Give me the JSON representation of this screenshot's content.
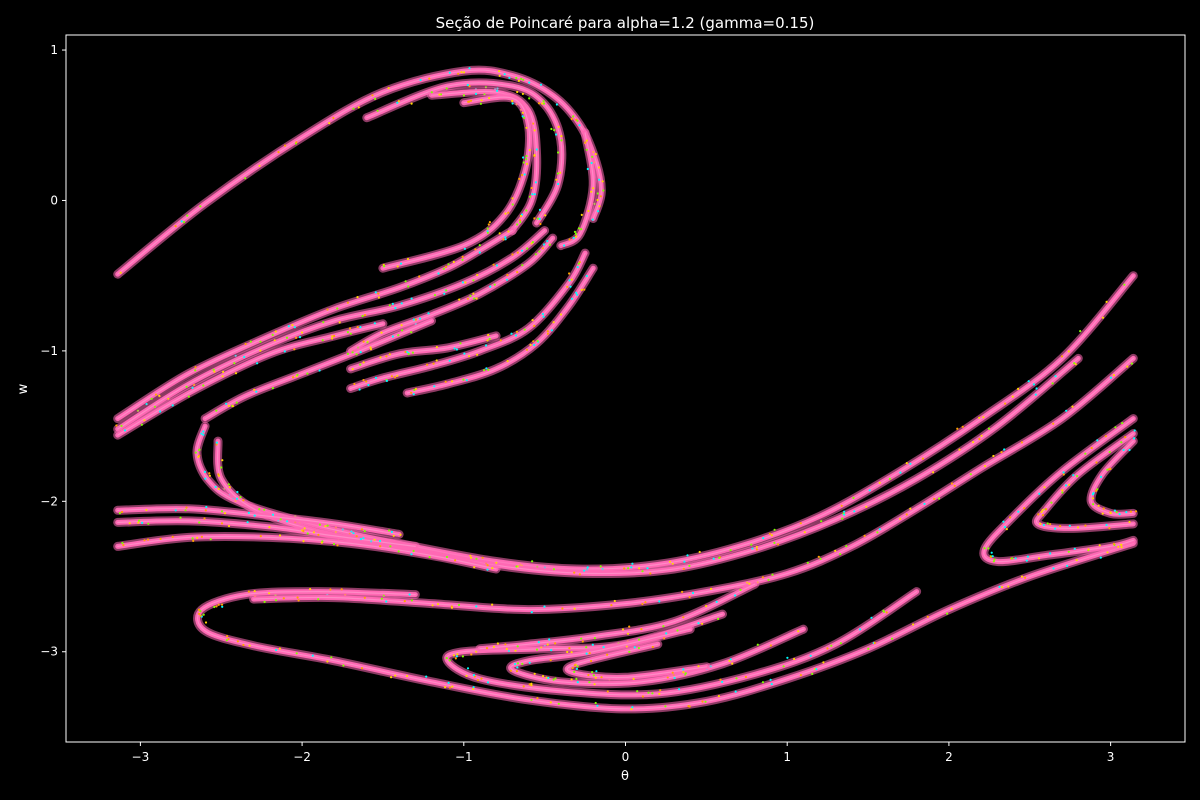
{
  "chart_data": {
    "type": "scatter",
    "title": "Seção de Poincaré para alpha=1.2 (gamma=0.15)",
    "xlabel": "θ",
    "ylabel": "w",
    "xlim": [
      -3.46,
      3.46
    ],
    "ylim": [
      -3.6,
      1.1
    ],
    "xticks": [
      -3,
      -2,
      -1,
      0,
      1,
      2,
      3
    ],
    "yticks": [
      -3,
      -2,
      -1,
      0,
      1
    ],
    "xtick_labels": [
      "−3",
      "−2",
      "−1",
      "0",
      "1",
      "2",
      "3"
    ],
    "ytick_labels": [
      "−3",
      "−2",
      "−1",
      "0",
      "1"
    ],
    "grid": false,
    "background": "#000000",
    "foreground": "#ffffff",
    "marker_colors": [
      "#ff69b4",
      "#ffd700",
      "#ffa500",
      "#7fff00",
      "#00ffff"
    ],
    "primary_color": "#ff69b4",
    "bands": [
      {
        "name": "upper-hook-outer",
        "points": [
          [
            -3.14,
            -0.49
          ],
          [
            -2.6,
            -0.02
          ],
          [
            -2.0,
            0.42
          ],
          [
            -1.5,
            0.72
          ],
          [
            -1.0,
            0.86
          ],
          [
            -0.7,
            0.83
          ],
          [
            -0.45,
            0.7
          ],
          [
            -0.28,
            0.5
          ],
          [
            -0.18,
            0.25
          ],
          [
            -0.15,
            0.05
          ],
          [
            -0.2,
            -0.12
          ]
        ]
      },
      {
        "name": "upper-hook-inner-a",
        "points": [
          [
            -1.6,
            0.55
          ],
          [
            -1.1,
            0.76
          ],
          [
            -0.7,
            0.76
          ],
          [
            -0.5,
            0.64
          ],
          [
            -0.4,
            0.4
          ],
          [
            -0.42,
            0.1
          ],
          [
            -0.55,
            -0.15
          ]
        ]
      },
      {
        "name": "upper-hook-inner-b",
        "points": [
          [
            -1.2,
            0.7
          ],
          [
            -0.8,
            0.72
          ],
          [
            -0.6,
            0.6
          ],
          [
            -0.55,
            0.3
          ],
          [
            -0.58,
            0.0
          ],
          [
            -0.7,
            -0.2
          ]
        ]
      },
      {
        "name": "upper-hook-inner-c",
        "points": [
          [
            -1.0,
            0.65
          ],
          [
            -0.7,
            0.68
          ],
          [
            -0.6,
            0.5
          ],
          [
            -0.62,
            0.2
          ],
          [
            -0.75,
            -0.1
          ],
          [
            -1.0,
            -0.3
          ],
          [
            -1.5,
            -0.45
          ]
        ]
      },
      {
        "name": "upper-hook-tip",
        "points": [
          [
            -0.25,
            0.45
          ],
          [
            -0.2,
            0.1
          ],
          [
            -0.28,
            -0.22
          ],
          [
            -0.4,
            -0.3
          ]
        ]
      },
      {
        "name": "mid-arm-a",
        "points": [
          [
            -3.14,
            -1.45
          ],
          [
            -2.7,
            -1.15
          ],
          [
            -2.2,
            -0.9
          ],
          [
            -1.8,
            -0.72
          ],
          [
            -1.4,
            -0.58
          ],
          [
            -1.1,
            -0.45
          ],
          [
            -0.9,
            -0.33
          ],
          [
            -0.7,
            -0.2
          ]
        ]
      },
      {
        "name": "mid-arm-b",
        "points": [
          [
            -3.14,
            -1.52
          ],
          [
            -2.7,
            -1.22
          ],
          [
            -2.2,
            -0.96
          ],
          [
            -1.8,
            -0.8
          ],
          [
            -1.4,
            -0.7
          ],
          [
            -1.0,
            -0.55
          ],
          [
            -0.7,
            -0.38
          ],
          [
            -0.5,
            -0.2
          ]
        ]
      },
      {
        "name": "mid-arm-c",
        "points": [
          [
            -3.14,
            -1.56
          ],
          [
            -2.7,
            -1.28
          ],
          [
            -2.2,
            -1.02
          ],
          [
            -1.8,
            -0.9
          ],
          [
            -1.5,
            -0.82
          ]
        ]
      },
      {
        "name": "mid-fold-small",
        "points": [
          [
            -1.7,
            -1.0
          ],
          [
            -1.5,
            -0.88
          ],
          [
            -1.2,
            -0.76
          ],
          [
            -0.9,
            -0.62
          ],
          [
            -0.6,
            -0.42
          ],
          [
            -0.45,
            -0.25
          ]
        ]
      },
      {
        "name": "mid-fold-lower",
        "points": [
          [
            -1.7,
            -1.25
          ],
          [
            -1.5,
            -1.18
          ],
          [
            -1.2,
            -1.1
          ],
          [
            -0.9,
            -1.0
          ],
          [
            -0.6,
            -0.85
          ],
          [
            -0.35,
            -0.55
          ],
          [
            -0.25,
            -0.35
          ]
        ]
      },
      {
        "name": "mid-tongue",
        "points": [
          [
            -1.7,
            -1.12
          ],
          [
            -1.4,
            -1.02
          ],
          [
            -1.1,
            -0.98
          ],
          [
            -0.8,
            -0.9
          ]
        ]
      },
      {
        "name": "mid-tongue-2",
        "points": [
          [
            -1.35,
            -1.28
          ],
          [
            -1.1,
            -1.22
          ],
          [
            -0.8,
            -1.12
          ],
          [
            -0.55,
            -0.95
          ],
          [
            -0.35,
            -0.7
          ],
          [
            -0.2,
            -0.45
          ]
        ]
      },
      {
        "name": "swirl-left",
        "points": [
          [
            -2.6,
            -1.45
          ],
          [
            -2.35,
            -1.3
          ],
          [
            -2.0,
            -1.15
          ],
          [
            -1.6,
            -0.98
          ],
          [
            -1.2,
            -0.8
          ]
        ]
      },
      {
        "name": "big-s-band",
        "points": [
          [
            -2.6,
            -1.5
          ],
          [
            -2.65,
            -1.68
          ],
          [
            -2.58,
            -1.86
          ],
          [
            -2.4,
            -2.0
          ],
          [
            -1.95,
            -2.15
          ],
          [
            -1.4,
            -2.28
          ],
          [
            -0.8,
            -2.4
          ],
          [
            -0.3,
            -2.45
          ],
          [
            0.2,
            -2.42
          ],
          [
            0.7,
            -2.3
          ],
          [
            1.2,
            -2.1
          ],
          [
            1.7,
            -1.8
          ],
          [
            2.2,
            -1.45
          ],
          [
            2.7,
            -1.05
          ],
          [
            3.14,
            -0.5
          ]
        ]
      },
      {
        "name": "big-s-band-b",
        "points": [
          [
            -2.52,
            -1.6
          ],
          [
            -2.5,
            -1.85
          ],
          [
            -2.3,
            -2.05
          ],
          [
            -1.9,
            -2.2
          ],
          [
            -1.3,
            -2.33
          ],
          [
            -0.7,
            -2.44
          ],
          [
            -0.2,
            -2.48
          ],
          [
            0.3,
            -2.45
          ],
          [
            0.8,
            -2.32
          ],
          [
            1.3,
            -2.12
          ],
          [
            1.8,
            -1.85
          ],
          [
            2.3,
            -1.5
          ],
          [
            2.8,
            -1.05
          ]
        ]
      },
      {
        "name": "left-strands-a",
        "points": [
          [
            -3.14,
            -2.06
          ],
          [
            -2.7,
            -2.05
          ],
          [
            -2.2,
            -2.1
          ],
          [
            -1.8,
            -2.15
          ],
          [
            -1.4,
            -2.22
          ]
        ]
      },
      {
        "name": "left-strands-b",
        "points": [
          [
            -3.14,
            -2.14
          ],
          [
            -2.7,
            -2.13
          ],
          [
            -2.2,
            -2.17
          ],
          [
            -1.8,
            -2.23
          ],
          [
            -1.3,
            -2.3
          ]
        ]
      },
      {
        "name": "left-strands-c",
        "points": [
          [
            -3.14,
            -2.3
          ],
          [
            -2.7,
            -2.24
          ],
          [
            -2.2,
            -2.24
          ],
          [
            -1.7,
            -2.28
          ],
          [
            -1.2,
            -2.36
          ],
          [
            -0.8,
            -2.45
          ]
        ]
      },
      {
        "name": "lower-hook-outer",
        "points": [
          [
            -1.3,
            -2.62
          ],
          [
            -1.9,
            -2.6
          ],
          [
            -2.35,
            -2.62
          ],
          [
            -2.62,
            -2.72
          ],
          [
            -2.6,
            -2.86
          ],
          [
            -2.3,
            -2.96
          ],
          [
            -1.8,
            -3.06
          ],
          [
            -1.2,
            -3.2
          ],
          [
            -0.6,
            -3.32
          ],
          [
            0.0,
            -3.38
          ],
          [
            0.5,
            -3.33
          ],
          [
            1.0,
            -3.18
          ],
          [
            1.5,
            -2.98
          ],
          [
            2.0,
            -2.72
          ],
          [
            2.5,
            -2.5
          ],
          [
            3.14,
            -2.28
          ]
        ]
      },
      {
        "name": "lower-hook-top",
        "points": [
          [
            -2.3,
            -2.65
          ],
          [
            -1.8,
            -2.64
          ],
          [
            -1.2,
            -2.68
          ],
          [
            -0.6,
            -2.72
          ],
          [
            0.0,
            -2.68
          ],
          [
            0.5,
            -2.6
          ],
          [
            1.0,
            -2.48
          ],
          [
            1.4,
            -2.3
          ],
          [
            1.8,
            -2.05
          ],
          [
            2.2,
            -1.78
          ],
          [
            2.7,
            -1.45
          ],
          [
            3.14,
            -1.05
          ]
        ]
      },
      {
        "name": "lower-inner-a",
        "points": [
          [
            0.6,
            -2.75
          ],
          [
            0.0,
            -2.95
          ],
          [
            -0.5,
            -2.98
          ],
          [
            -1.0,
            -3.0
          ],
          [
            -1.1,
            -3.06
          ],
          [
            -0.9,
            -3.18
          ],
          [
            -0.4,
            -3.26
          ],
          [
            0.2,
            -3.28
          ],
          [
            0.8,
            -3.15
          ],
          [
            1.3,
            -2.95
          ],
          [
            1.8,
            -2.6
          ]
        ]
      },
      {
        "name": "lower-inner-b",
        "points": [
          [
            0.4,
            -2.85
          ],
          [
            -0.2,
            -3.0
          ],
          [
            -0.6,
            -3.06
          ],
          [
            -0.7,
            -3.12
          ],
          [
            -0.4,
            -3.2
          ],
          [
            0.1,
            -3.2
          ],
          [
            0.6,
            -3.08
          ],
          [
            1.1,
            -2.85
          ]
        ]
      },
      {
        "name": "lower-inner-c",
        "points": [
          [
            0.2,
            -2.95
          ],
          [
            -0.3,
            -3.08
          ],
          [
            -0.32,
            -3.14
          ],
          [
            0.0,
            -3.17
          ],
          [
            0.5,
            -3.1
          ]
        ]
      },
      {
        "name": "lower-inner-d",
        "points": [
          [
            0.8,
            -2.55
          ],
          [
            0.3,
            -2.8
          ],
          [
            -0.2,
            -2.9
          ],
          [
            -0.6,
            -2.95
          ],
          [
            -0.9,
            -2.98
          ]
        ]
      },
      {
        "name": "right-hook-outer",
        "points": [
          [
            3.14,
            -1.45
          ],
          [
            2.7,
            -1.8
          ],
          [
            2.4,
            -2.1
          ],
          [
            2.22,
            -2.32
          ],
          [
            2.3,
            -2.4
          ],
          [
            2.6,
            -2.36
          ],
          [
            3.0,
            -2.3
          ],
          [
            3.14,
            -2.26
          ]
        ]
      },
      {
        "name": "right-hook-inner",
        "points": [
          [
            3.14,
            -1.55
          ],
          [
            2.8,
            -1.82
          ],
          [
            2.6,
            -2.05
          ],
          [
            2.55,
            -2.15
          ],
          [
            2.75,
            -2.18
          ],
          [
            3.14,
            -2.15
          ]
        ]
      },
      {
        "name": "right-hook-core",
        "points": [
          [
            3.14,
            -1.6
          ],
          [
            2.95,
            -1.82
          ],
          [
            2.88,
            -2.0
          ],
          [
            3.0,
            -2.08
          ],
          [
            3.14,
            -2.08
          ]
        ]
      }
    ]
  }
}
